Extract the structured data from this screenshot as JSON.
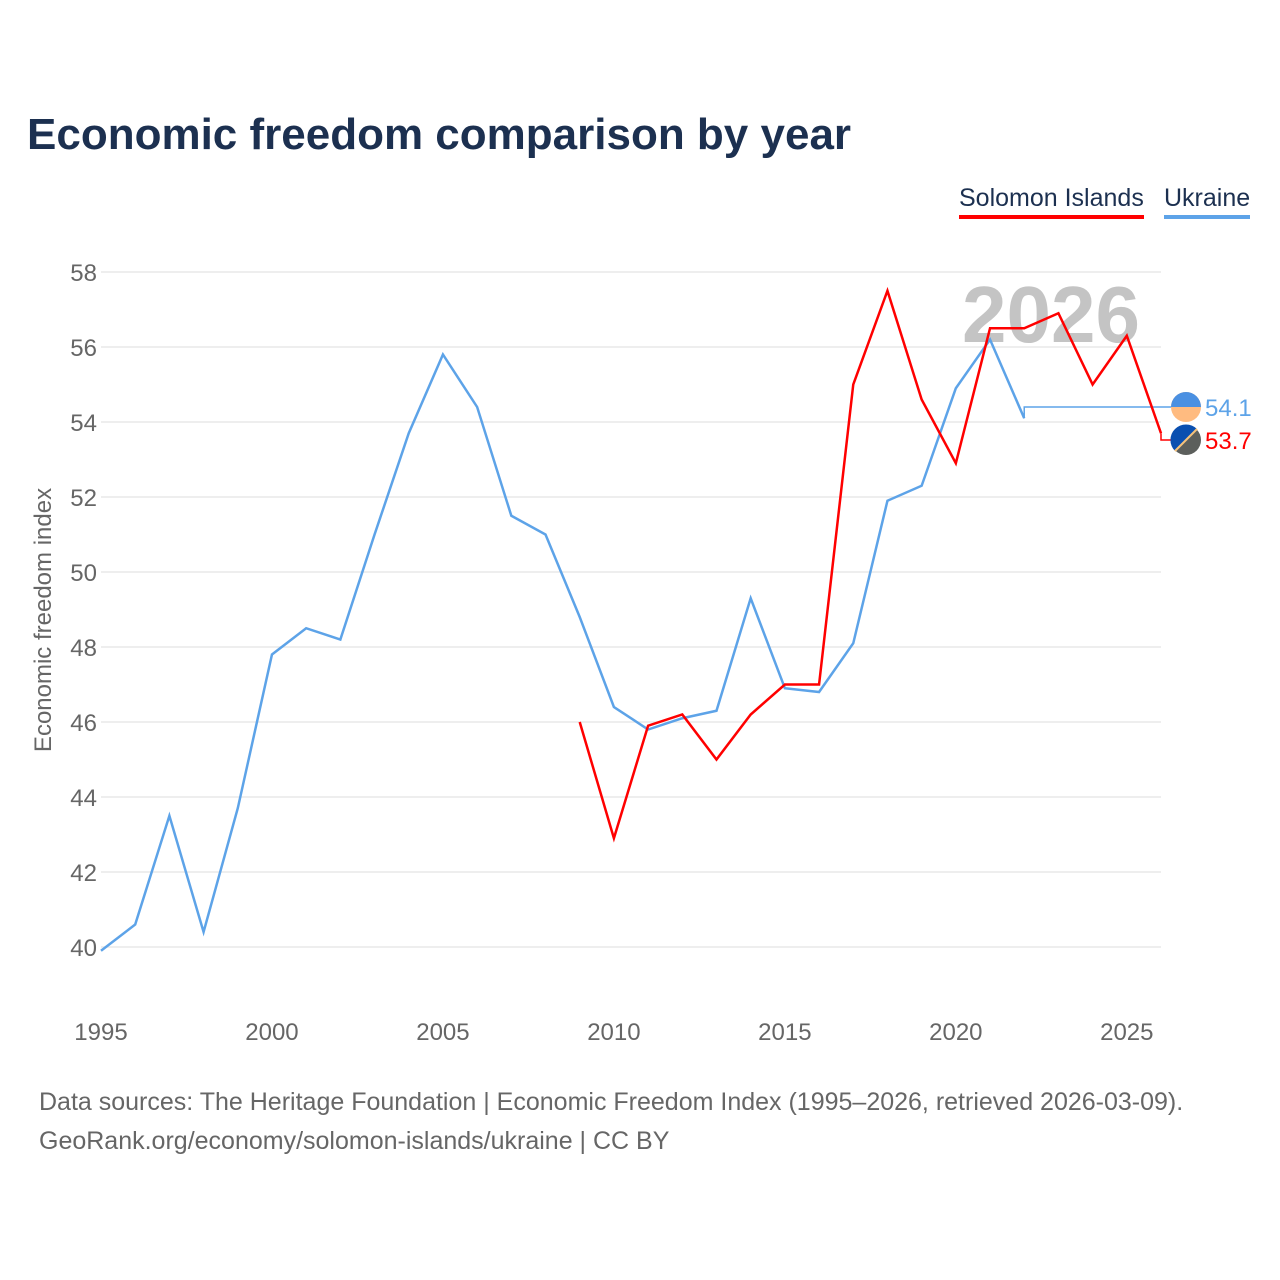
{
  "chart_data": {
    "type": "line",
    "title": "Economic freedom comparison by year",
    "xlabel": "",
    "ylabel": "Economic freedom index",
    "xlim": [
      1995,
      2026
    ],
    "ylim": [
      40,
      58
    ],
    "xticks": [
      1995,
      2000,
      2005,
      2010,
      2015,
      2020,
      2025
    ],
    "yticks": [
      40,
      42,
      44,
      46,
      48,
      50,
      52,
      54,
      56,
      58
    ],
    "grid": true,
    "legend_position": "top-right",
    "year_watermark": "2026",
    "series": [
      {
        "name": "Solomon Islands",
        "color": "#ff0000",
        "end_label": "53.7",
        "x": [
          2009,
          2010,
          2011,
          2012,
          2013,
          2014,
          2015,
          2016,
          2017,
          2018,
          2019,
          2020,
          2021,
          2022,
          2023,
          2024,
          2025,
          2026
        ],
        "y": [
          46.0,
          42.9,
          45.9,
          46.2,
          45.0,
          46.2,
          47.0,
          47.0,
          55.0,
          57.5,
          54.6,
          52.9,
          56.5,
          56.5,
          56.9,
          55.0,
          56.3,
          53.7
        ]
      },
      {
        "name": "Ukraine",
        "color": "#5da3e8",
        "end_label": "54.1",
        "x": [
          1995,
          1996,
          1997,
          1998,
          1999,
          2000,
          2001,
          2002,
          2003,
          2004,
          2005,
          2006,
          2007,
          2008,
          2009,
          2010,
          2011,
          2012,
          2013,
          2014,
          2015,
          2016,
          2017,
          2018,
          2019,
          2020,
          2021,
          2022
        ],
        "y": [
          39.9,
          40.6,
          43.5,
          40.4,
          43.7,
          47.8,
          48.5,
          48.2,
          51.0,
          53.7,
          55.8,
          54.4,
          51.5,
          51.0,
          48.8,
          46.4,
          45.8,
          46.1,
          46.3,
          49.3,
          46.9,
          46.8,
          48.1,
          51.9,
          52.3,
          54.9,
          56.2,
          54.1
        ]
      }
    ]
  },
  "footer": {
    "line1": "Data sources: The Heritage Foundation | Economic Freedom Index (1995–2026, retrieved 2026-03-09).",
    "line2": "GeoRank.org/economy/solomon-islands/ukraine | CC BY"
  }
}
